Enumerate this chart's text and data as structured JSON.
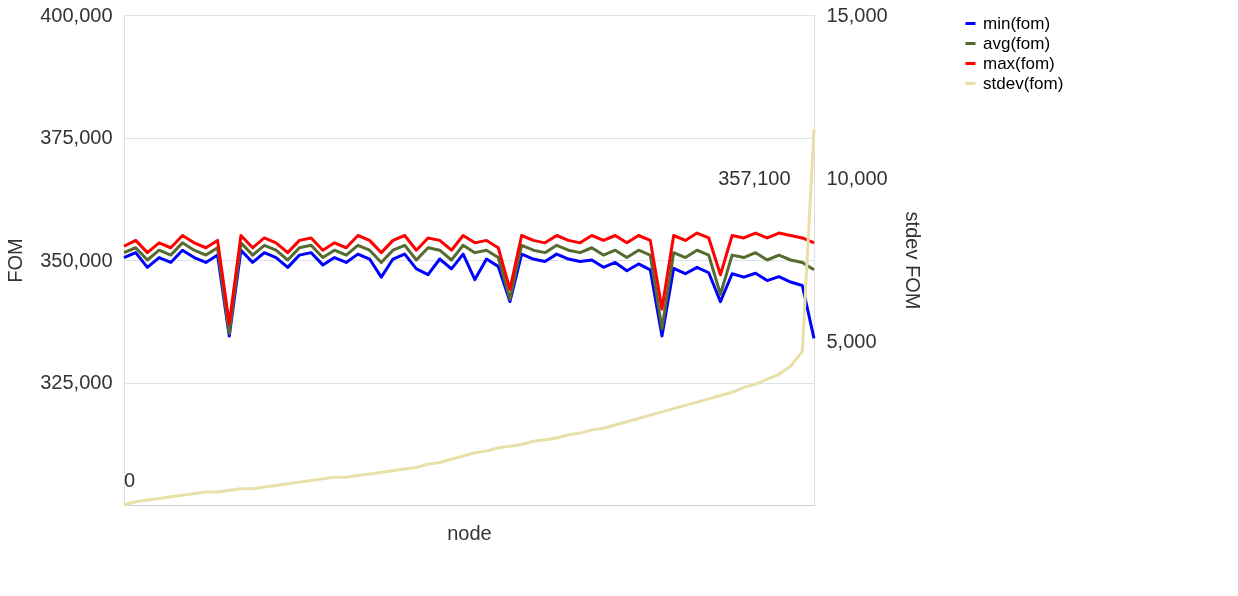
{
  "chart_data": {
    "type": "line",
    "xlabel": "node",
    "ylabel": "FOM",
    "y2label": "stdev FOM",
    "categories": [
      null,
      null,
      null,
      null,
      null,
      null,
      null,
      null,
      null,
      null,
      null,
      null,
      null,
      null,
      null,
      null,
      null,
      null,
      null,
      null,
      null,
      null,
      null,
      null,
      null,
      null,
      null,
      null,
      null,
      null,
      null,
      null,
      null,
      null,
      null,
      null,
      null,
      null,
      null,
      null,
      null,
      null,
      null,
      null,
      null,
      null,
      null,
      null,
      null,
      null,
      null,
      null,
      null,
      null,
      null,
      null,
      null,
      null,
      null,
      null
    ],
    "ylim": [
      300000,
      400000
    ],
    "yticks": [
      {
        "value": 300000,
        "label": null
      },
      {
        "value": 325000,
        "label": "325,000"
      },
      {
        "value": 350000,
        "label": "350,000"
      },
      {
        "value": 375000,
        "label": "375,000"
      },
      {
        "value": 400000,
        "label": "400,000"
      }
    ],
    "y2lim": [
      0,
      15000
    ],
    "y2ticks": [
      {
        "value": 5000,
        "label": "5,000"
      },
      {
        "value": 10000,
        "label": "10,000"
      },
      {
        "value": 15000,
        "label": "15,000"
      }
    ],
    "grid": "y",
    "legend": "right",
    "line_style": "solid",
    "annotations": [
      "357,100",
      "0"
    ],
    "series": [
      {
        "name": "min(fom)",
        "color": "#0000ff",
        "values": [
          350500,
          351500,
          348500,
          350500,
          349500,
          352000,
          350500,
          349500,
          351000,
          334500,
          352000,
          349500,
          351500,
          350500,
          348500,
          351000,
          351500,
          349000,
          350500,
          349500,
          351200,
          350200,
          346500,
          350200,
          351200,
          348200,
          347000,
          350200,
          348200,
          351200,
          346000,
          350200,
          348700,
          341500,
          351200,
          350200,
          349700,
          351200,
          350200,
          349700,
          350000,
          348500,
          349500,
          347800,
          349200,
          348000,
          334500,
          348300,
          347200,
          348500,
          347400,
          341500,
          347200,
          346500,
          347300,
          345800,
          346600,
          345500,
          344800,
          334000
        ]
      },
      {
        "name": "avg(fom)",
        "color": "#556b2f",
        "values": [
          351500,
          352500,
          350000,
          352000,
          351000,
          353500,
          352000,
          351000,
          352500,
          335000,
          353500,
          351000,
          353000,
          352000,
          350000,
          352500,
          353000,
          350500,
          352000,
          351000,
          353000,
          352000,
          349500,
          352000,
          353000,
          350000,
          352500,
          352000,
          350000,
          353000,
          351500,
          352000,
          350500,
          342000,
          353000,
          352000,
          351500,
          353000,
          352000,
          351500,
          352500,
          351000,
          352000,
          350500,
          352000,
          351000,
          336000,
          351500,
          350500,
          352000,
          351000,
          343000,
          351000,
          350500,
          351500,
          350000,
          351000,
          350000,
          349500,
          348000
        ]
      },
      {
        "name": "max(fom)",
        "color": "#ff0000",
        "values": [
          352800,
          354000,
          351500,
          353500,
          352500,
          355000,
          353500,
          352500,
          354000,
          337000,
          355000,
          352500,
          354500,
          353500,
          351500,
          354000,
          354500,
          352000,
          353500,
          352500,
          355000,
          354000,
          351500,
          354000,
          355000,
          352000,
          354500,
          354000,
          352000,
          355000,
          353500,
          354000,
          352500,
          344000,
          355000,
          354000,
          353500,
          355000,
          354000,
          353500,
          355000,
          354000,
          355000,
          353500,
          355000,
          354000,
          340000,
          355000,
          354000,
          355500,
          354500,
          347000,
          355000,
          354500,
          355500,
          354500,
          355500,
          355000,
          354500,
          353500
        ]
      },
      {
        "name": "stdev(fom)",
        "color": "#e8e0a8",
        "axis": "y2",
        "values": [
          0,
          100,
          150,
          200,
          250,
          300,
          350,
          400,
          400,
          450,
          500,
          500,
          550,
          600,
          650,
          700,
          750,
          800,
          850,
          850,
          900,
          950,
          1000,
          1050,
          1100,
          1150,
          1250,
          1300,
          1400,
          1500,
          1600,
          1650,
          1750,
          1800,
          1850,
          1950,
          2000,
          2050,
          2150,
          2200,
          2300,
          2350,
          2450,
          2550,
          2650,
          2750,
          2850,
          2950,
          3050,
          3150,
          3250,
          3350,
          3450,
          3600,
          3700,
          3850,
          4000,
          4250,
          4700,
          11500
        ]
      }
    ]
  }
}
